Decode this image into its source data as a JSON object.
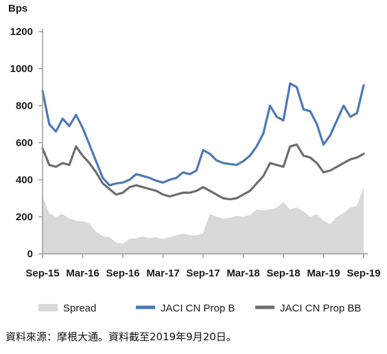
{
  "source_note": "資料來源：摩根大通。資料截至2019年9月20日。",
  "chart_data": {
    "type": "area",
    "title": "",
    "ylabel": "Bps",
    "xlabel": "",
    "ylim": [
      0,
      1200
    ],
    "y_ticks": [
      0,
      200,
      400,
      600,
      800,
      1000,
      1200
    ],
    "x_ticks": [
      "Sep-15",
      "Mar-16",
      "Sep-16",
      "Mar-17",
      "Sep-17",
      "Mar-18",
      "Sep-18",
      "Mar-19",
      "Sep-19"
    ],
    "grid": false,
    "legend_position": "bottom",
    "colors": {
      "Spread": "#d9d9d9",
      "JACI CN Prop B": "#4a78b8",
      "JACI CN Prop BB": "#6d6d6d",
      "axis": "#9a9a9a"
    },
    "x": [
      "2015-09",
      "2015-10",
      "2015-11",
      "2015-12",
      "2016-01",
      "2016-02",
      "2016-03",
      "2016-04",
      "2016-05",
      "2016-06",
      "2016-07",
      "2016-08",
      "2016-09",
      "2016-10",
      "2016-11",
      "2016-12",
      "2017-01",
      "2017-02",
      "2017-03",
      "2017-04",
      "2017-05",
      "2017-06",
      "2017-07",
      "2017-08",
      "2017-09",
      "2017-10",
      "2017-11",
      "2017-12",
      "2018-01",
      "2018-02",
      "2018-03",
      "2018-04",
      "2018-05",
      "2018-06",
      "2018-07",
      "2018-08",
      "2018-09",
      "2018-10",
      "2018-11",
      "2018-12",
      "2019-01",
      "2019-02",
      "2019-03",
      "2019-04",
      "2019-05",
      "2019-06",
      "2019-07",
      "2019-08",
      "2019-09"
    ],
    "series": [
      {
        "name": "Spread",
        "type": "area",
        "values": [
          310,
          220,
          200,
          215,
          190,
          180,
          175,
          165,
          120,
          95,
          90,
          60,
          55,
          80,
          85,
          95,
          85,
          90,
          80,
          90,
          100,
          110,
          100,
          100,
          110,
          215,
          200,
          190,
          195,
          205,
          200,
          210,
          240,
          235,
          240,
          250,
          280,
          240,
          250,
          230,
          200,
          215,
          180,
          160,
          200,
          220,
          250,
          260,
          360
        ]
      },
      {
        "name": "JACI CN Prop B",
        "type": "line",
        "values": [
          880,
          700,
          660,
          730,
          690,
          750,
          680,
          590,
          500,
          410,
          370,
          380,
          385,
          400,
          430,
          420,
          410,
          395,
          385,
          400,
          410,
          440,
          430,
          450,
          560,
          540,
          505,
          490,
          485,
          480,
          500,
          530,
          580,
          650,
          800,
          740,
          720,
          920,
          900,
          780,
          770,
          700,
          590,
          640,
          720,
          800,
          740,
          760,
          910
        ]
      },
      {
        "name": "JACI CN Prop BB",
        "type": "line",
        "values": [
          570,
          480,
          470,
          490,
          480,
          580,
          530,
          490,
          440,
          380,
          350,
          320,
          330,
          360,
          370,
          360,
          350,
          340,
          320,
          310,
          320,
          330,
          330,
          340,
          360,
          340,
          320,
          300,
          295,
          300,
          320,
          340,
          380,
          420,
          490,
          480,
          470,
          580,
          590,
          530,
          520,
          490,
          440,
          450,
          470,
          490,
          510,
          520,
          540
        ]
      }
    ]
  }
}
